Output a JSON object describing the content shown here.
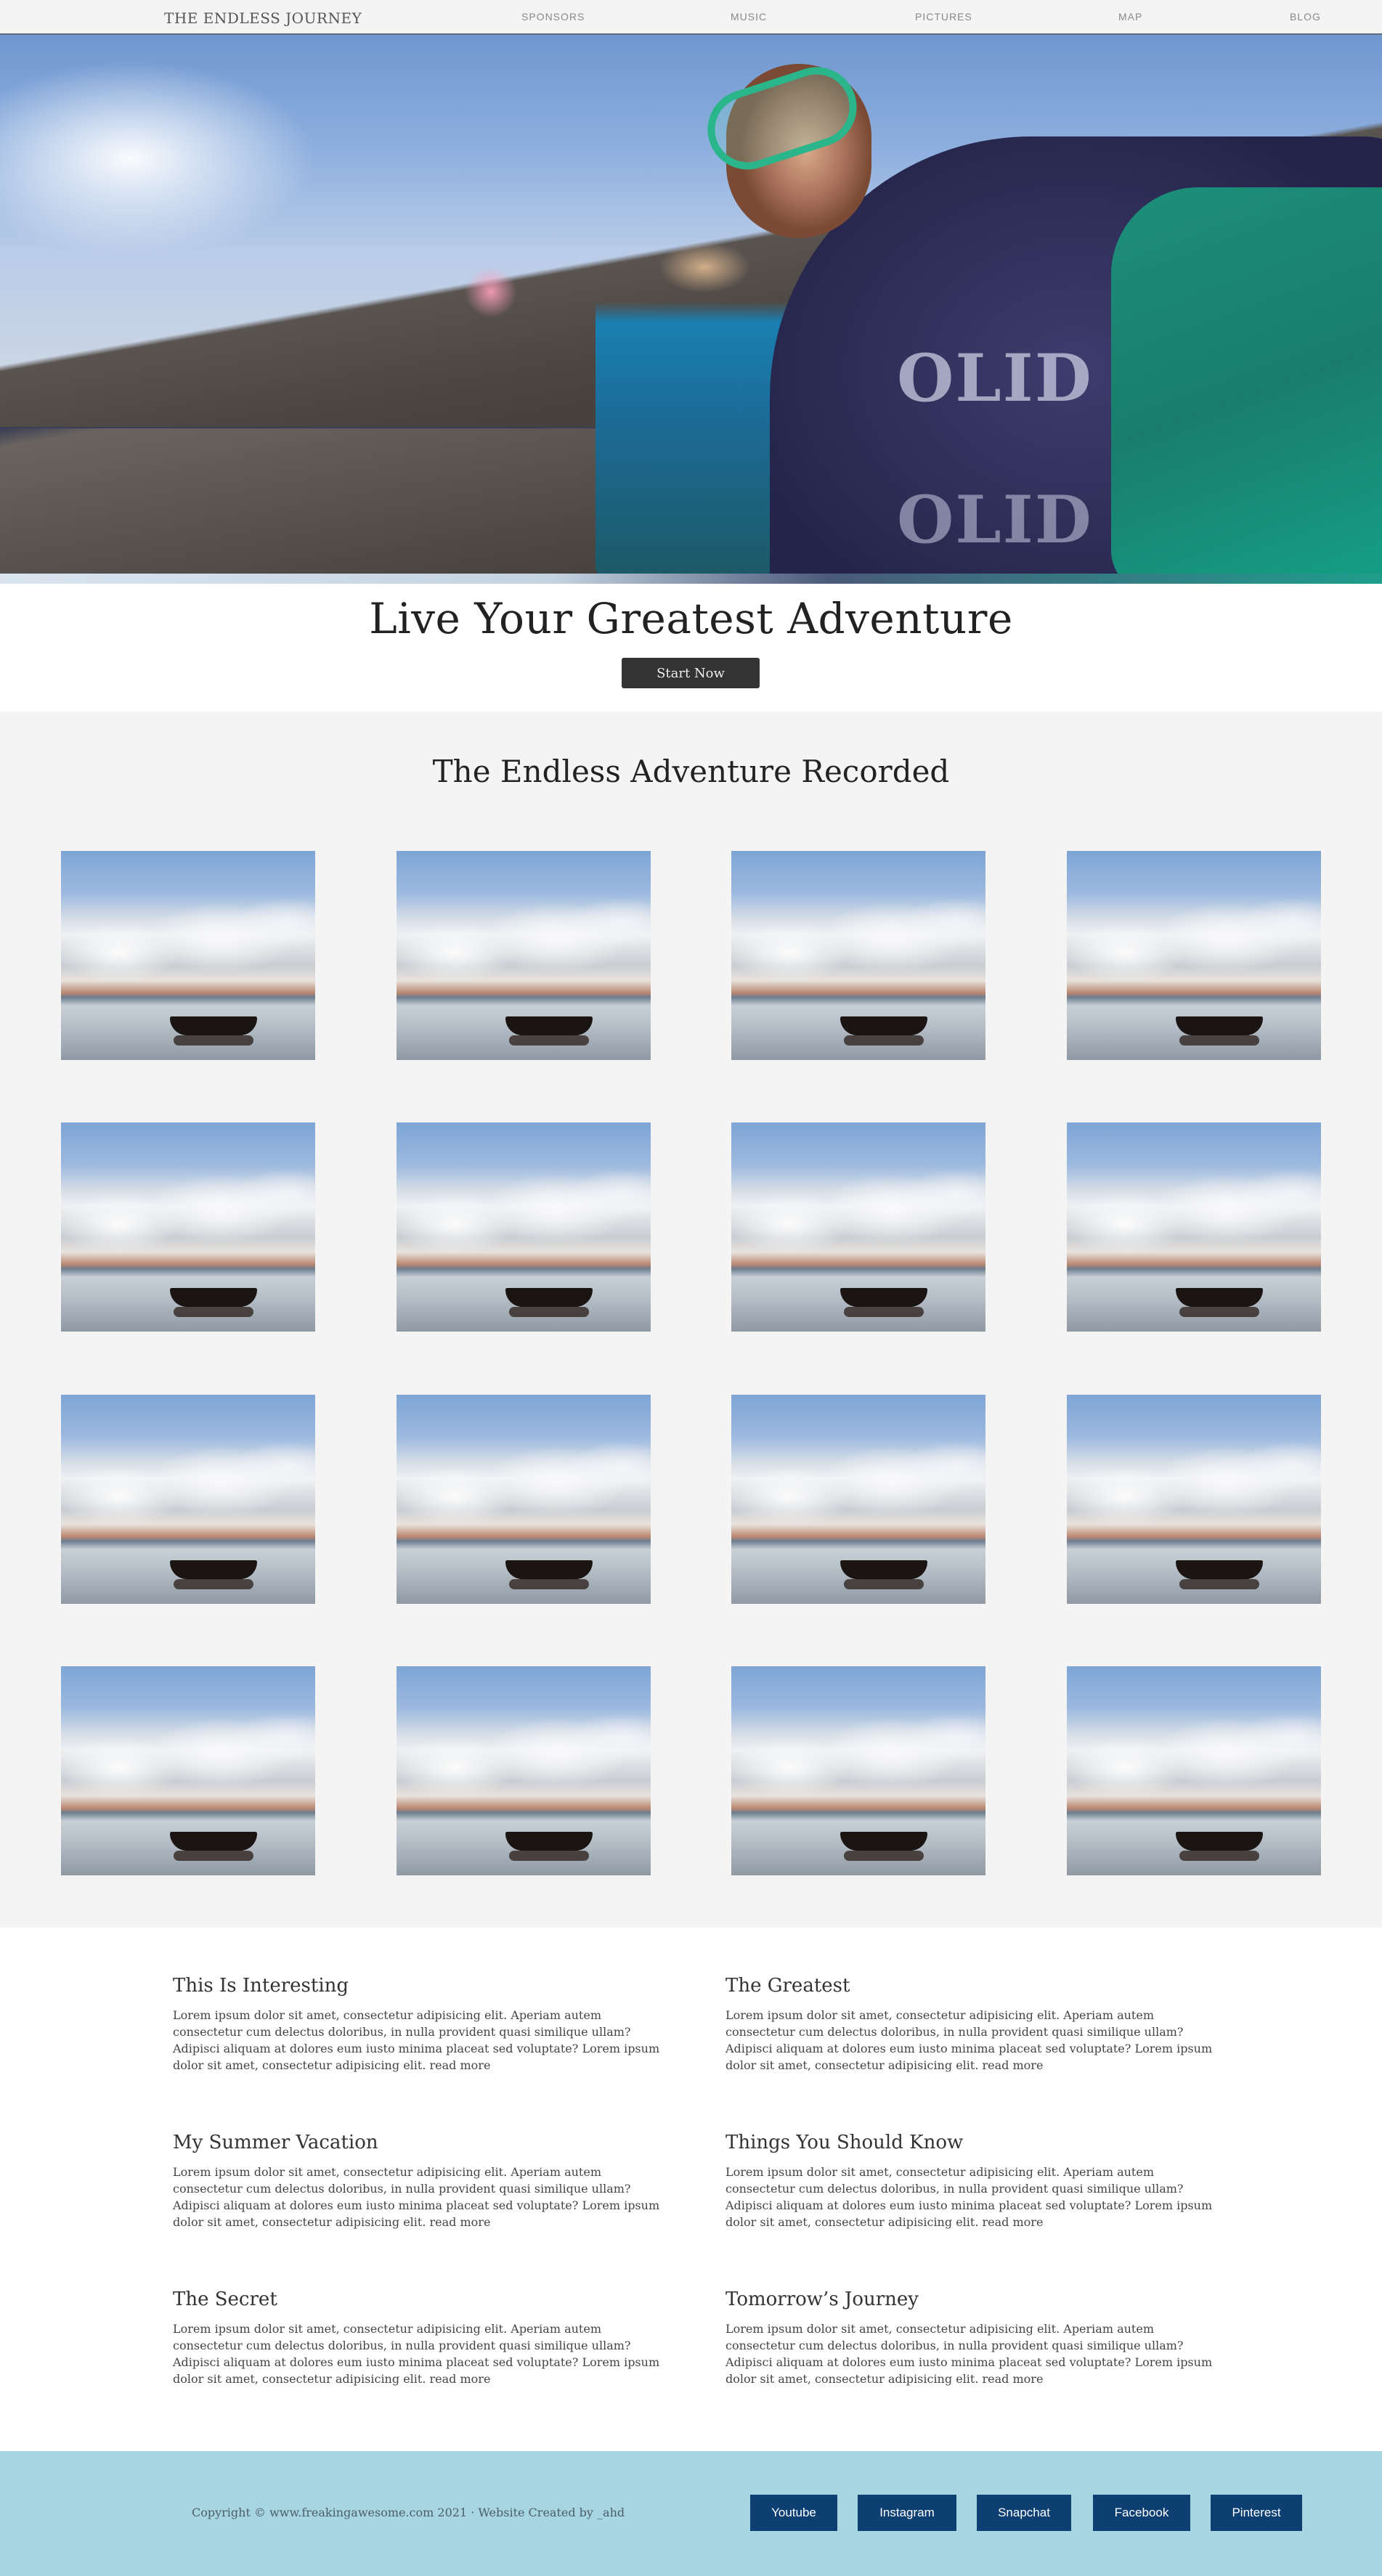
{
  "nav": {
    "brand": "THE ENDLESS JOURNEY",
    "links": [
      "SPONSORS",
      "MUSIC",
      "PICTURES",
      "MAP",
      "BLOG"
    ]
  },
  "hero": {
    "shirt_logo": "OLID",
    "title": "Live Your Greatest Adventure",
    "cta_label": "Start Now"
  },
  "gallery": {
    "title": "The Endless Adventure Recorded",
    "image_count": 16
  },
  "articles": [
    {
      "title": "This Is Interesting",
      "body": "Lorem ipsum dolor sit amet, consectetur adipisicing elit. Aperiam autem consectetur cum delectus doloribus, in nulla provident quasi similique ullam? Adipisci aliquam at dolores eum iusto minima placeat sed voluptate? Lorem ipsum dolor sit amet, consectetur adipisicing elit.",
      "read_more": "read more"
    },
    {
      "title": "The Greatest",
      "body": "Lorem ipsum dolor sit amet, consectetur adipisicing elit. Aperiam autem consectetur cum delectus doloribus, in nulla provident quasi similique ullam? Adipisci aliquam at dolores eum iusto minima placeat sed voluptate? Lorem ipsum dolor sit amet, consectetur adipisicing elit.",
      "read_more": "read more"
    },
    {
      "title": "My Summer Vacation",
      "body": "Lorem ipsum dolor sit amet, consectetur adipisicing elit. Aperiam autem consectetur cum delectus doloribus, in nulla provident quasi similique ullam? Adipisci aliquam at dolores eum iusto minima placeat sed voluptate? Lorem ipsum dolor sit amet, consectetur adipisicing elit.",
      "read_more": "read more"
    },
    {
      "title": "Things You Should Know",
      "body": "Lorem ipsum dolor sit amet, consectetur adipisicing elit. Aperiam autem consectetur cum delectus doloribus, in nulla provident quasi similique ullam? Adipisci aliquam at dolores eum iusto minima placeat sed voluptate? Lorem ipsum dolor sit amet, consectetur adipisicing elit.",
      "read_more": "read more"
    },
    {
      "title": "The Secret",
      "body": "Lorem ipsum dolor sit amet, consectetur adipisicing elit. Aperiam autem consectetur cum delectus doloribus, in nulla provident quasi similique ullam? Adipisci aliquam at dolores eum iusto minima placeat sed voluptate? Lorem ipsum dolor sit amet, consectetur adipisicing elit.",
      "read_more": "read more"
    },
    {
      "title": "Tomorrow’s Journey",
      "body": "Lorem ipsum dolor sit amet, consectetur adipisicing elit. Aperiam autem consectetur cum delectus doloribus, in nulla provident quasi similique ullam? Adipisci aliquam at dolores eum iusto minima placeat sed voluptate? Lorem ipsum dolor sit amet, consectetur adipisicing elit.",
      "read_more": "read more"
    }
  ],
  "footer": {
    "copyright": "Copyright © www.freakingawesome.com 2021 · Website Created by _ahd",
    "social": [
      "Youtube",
      "Instagram",
      "Snapchat",
      "Facebook",
      "Pinterest"
    ],
    "background_color": "#a7d5e2",
    "button_color": "#0d3f73"
  },
  "colors": {
    "nav_bg": "#f4f4f4",
    "gallery_bg": "#f4f4f4",
    "cta_bg": "#333333"
  }
}
